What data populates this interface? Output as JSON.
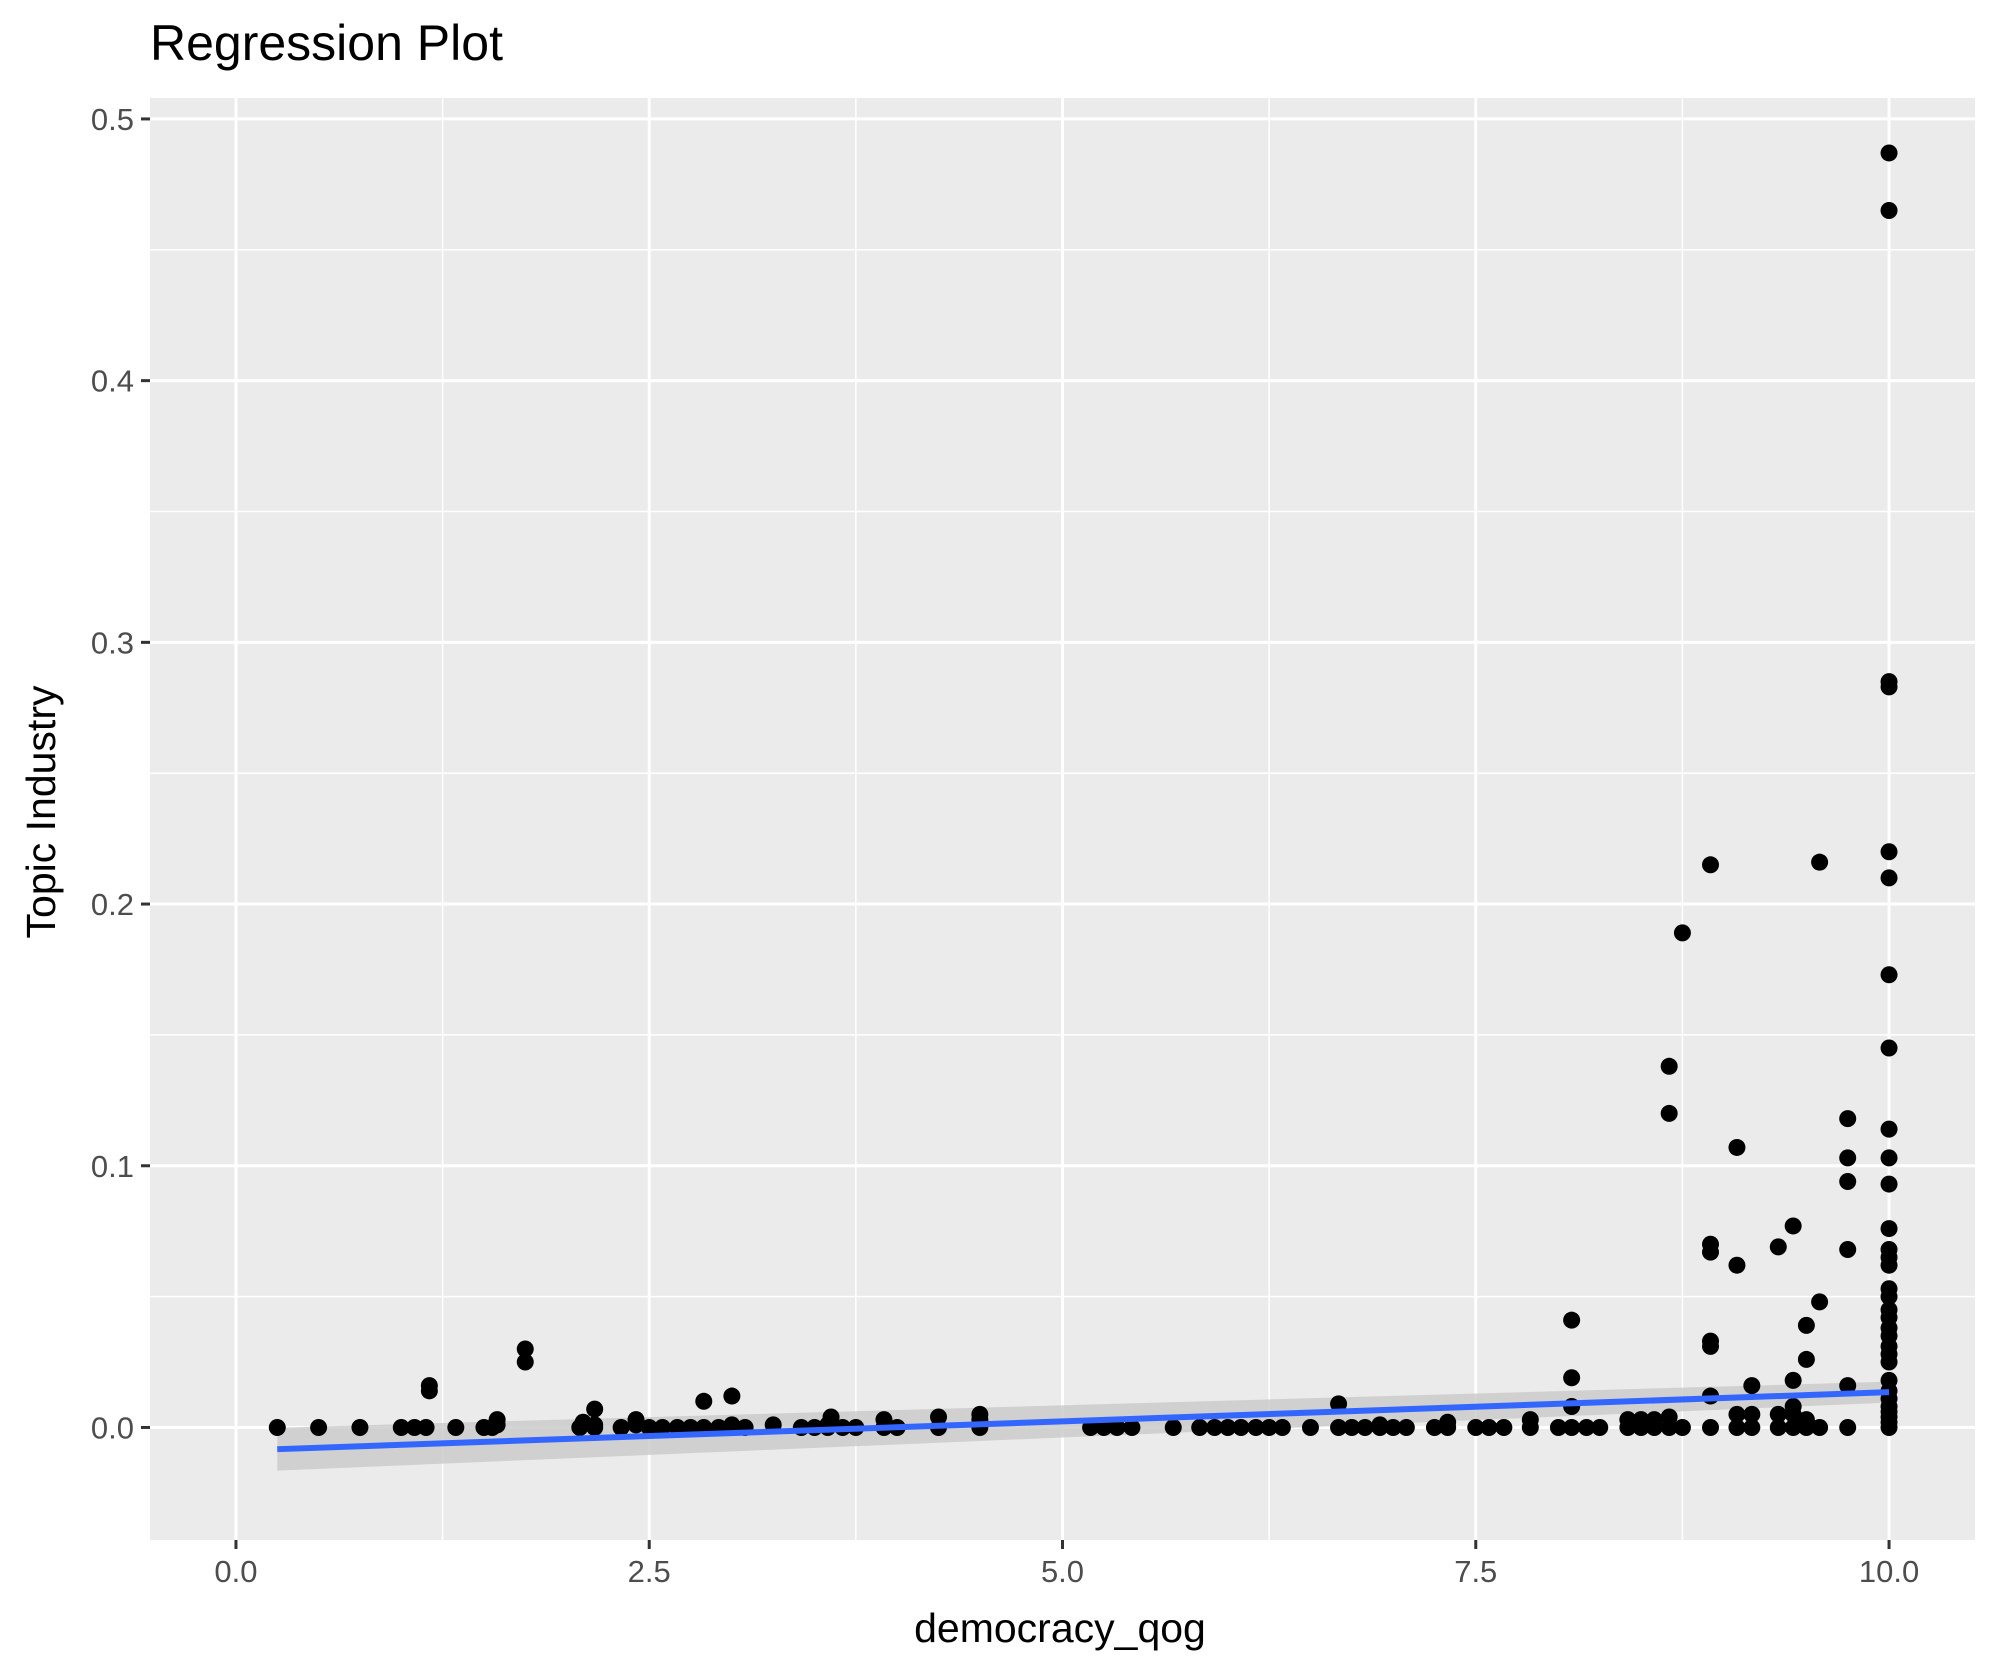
{
  "chart_data": {
    "type": "scatter",
    "title": "Regression Plot",
    "xlabel": "democracy_qog",
    "ylabel": "Topic Industry",
    "xlim": [
      -0.52,
      10.52
    ],
    "ylim": [
      -0.043,
      0.508
    ],
    "x_ticks": [
      {
        "value": 0.0,
        "label": "0.0"
      },
      {
        "value": 2.5,
        "label": "2.5"
      },
      {
        "value": 5.0,
        "label": "5.0"
      },
      {
        "value": 7.5,
        "label": "7.5"
      },
      {
        "value": 10.0,
        "label": "10.0"
      }
    ],
    "y_ticks": [
      {
        "value": 0.0,
        "label": "0.0"
      },
      {
        "value": 0.1,
        "label": "0.1"
      },
      {
        "value": 0.2,
        "label": "0.2"
      },
      {
        "value": 0.3,
        "label": "0.3"
      },
      {
        "value": 0.4,
        "label": "0.4"
      },
      {
        "value": 0.5,
        "label": "0.5"
      }
    ],
    "grid": true,
    "colors": {
      "panel": "#ebebeb",
      "grid": "#ffffff",
      "points": "#000000",
      "regression_line": "#3366ff",
      "confidence_band": "#c9c9c9"
    },
    "regression": {
      "x": [
        0.25,
        10.0
      ],
      "y": [
        -0.0083,
        0.0135
      ],
      "ci_lower": [
        -0.0165,
        0.0095
      ],
      "ci_upper": [
        -0.0001,
        0.0175
      ]
    },
    "points": [
      [
        0.25,
        0.0
      ],
      [
        0.5,
        0.0
      ],
      [
        0.75,
        0.0
      ],
      [
        1.0,
        0.0
      ],
      [
        1.08,
        0.0
      ],
      [
        1.15,
        0.0
      ],
      [
        1.17,
        0.014
      ],
      [
        1.17,
        0.016
      ],
      [
        1.33,
        0.0
      ],
      [
        1.5,
        0.0
      ],
      [
        1.55,
        0.0
      ],
      [
        1.58,
        0.001
      ],
      [
        1.58,
        0.003
      ],
      [
        1.75,
        0.025
      ],
      [
        1.75,
        0.03
      ],
      [
        2.08,
        0.0
      ],
      [
        2.1,
        0.002
      ],
      [
        2.17,
        0.0
      ],
      [
        2.17,
        0.001
      ],
      [
        2.17,
        0.007
      ],
      [
        2.33,
        0.0
      ],
      [
        2.42,
        0.001
      ],
      [
        2.42,
        0.003
      ],
      [
        2.5,
        0.0
      ],
      [
        2.58,
        0.0
      ],
      [
        2.67,
        0.0
      ],
      [
        2.75,
        0.0
      ],
      [
        2.83,
        0.0
      ],
      [
        2.83,
        0.01
      ],
      [
        2.92,
        0.0
      ],
      [
        3.0,
        0.001
      ],
      [
        3.0,
        0.012
      ],
      [
        3.08,
        0.0
      ],
      [
        3.25,
        0.001
      ],
      [
        3.42,
        0.0
      ],
      [
        3.5,
        0.0
      ],
      [
        3.58,
        0.0
      ],
      [
        3.58,
        0.001
      ],
      [
        3.6,
        0.004
      ],
      [
        3.67,
        0.0
      ],
      [
        3.75,
        0.0
      ],
      [
        3.92,
        0.0
      ],
      [
        3.92,
        0.003
      ],
      [
        4.0,
        0.0
      ],
      [
        4.25,
        0.0
      ],
      [
        4.25,
        0.004
      ],
      [
        4.5,
        0.0
      ],
      [
        4.5,
        0.003
      ],
      [
        4.5,
        0.005
      ],
      [
        5.17,
        0.0
      ],
      [
        5.25,
        0.0
      ],
      [
        5.33,
        0.0
      ],
      [
        5.42,
        0.0
      ],
      [
        5.67,
        0.0
      ],
      [
        5.83,
        0.0
      ],
      [
        5.92,
        0.0
      ],
      [
        6.0,
        0.0
      ],
      [
        6.08,
        0.0
      ],
      [
        6.17,
        0.0
      ],
      [
        6.25,
        0.0
      ],
      [
        6.33,
        0.0
      ],
      [
        6.5,
        0.0
      ],
      [
        6.67,
        0.0
      ],
      [
        6.67,
        0.009
      ],
      [
        6.75,
        0.0
      ],
      [
        6.83,
        0.0
      ],
      [
        6.92,
        0.0
      ],
      [
        6.92,
        0.001
      ],
      [
        7.0,
        0.0
      ],
      [
        7.08,
        0.0
      ],
      [
        7.25,
        0.0
      ],
      [
        7.33,
        0.0
      ],
      [
        7.33,
        0.002
      ],
      [
        7.5,
        0.0
      ],
      [
        7.58,
        0.0
      ],
      [
        7.67,
        0.0
      ],
      [
        7.83,
        0.0
      ],
      [
        7.83,
        0.003
      ],
      [
        8.0,
        0.0
      ],
      [
        8.08,
        0.0
      ],
      [
        8.08,
        0.008
      ],
      [
        8.08,
        0.019
      ],
      [
        8.08,
        0.041
      ],
      [
        8.17,
        0.0
      ],
      [
        8.25,
        0.0
      ],
      [
        8.42,
        0.0
      ],
      [
        8.42,
        0.003
      ],
      [
        8.5,
        0.0
      ],
      [
        8.5,
        0.003
      ],
      [
        8.58,
        0.0
      ],
      [
        8.58,
        0.003
      ],
      [
        8.67,
        0.0
      ],
      [
        8.67,
        0.004
      ],
      [
        8.67,
        0.12
      ],
      [
        8.67,
        0.138
      ],
      [
        8.75,
        0.0
      ],
      [
        8.75,
        0.189
      ],
      [
        8.92,
        0.0
      ],
      [
        8.92,
        0.012
      ],
      [
        8.92,
        0.031
      ],
      [
        8.92,
        0.033
      ],
      [
        8.92,
        0.067
      ],
      [
        8.92,
        0.07
      ],
      [
        8.92,
        0.215
      ],
      [
        9.08,
        0.0
      ],
      [
        9.08,
        0.005
      ],
      [
        9.08,
        0.062
      ],
      [
        9.08,
        0.107
      ],
      [
        9.17,
        0.0
      ],
      [
        9.17,
        0.005
      ],
      [
        9.17,
        0.016
      ],
      [
        9.33,
        0.0
      ],
      [
        9.33,
        0.005
      ],
      [
        9.33,
        0.069
      ],
      [
        9.42,
        0.0
      ],
      [
        9.42,
        0.005
      ],
      [
        9.42,
        0.008
      ],
      [
        9.42,
        0.018
      ],
      [
        9.42,
        0.077
      ],
      [
        9.5,
        0.0
      ],
      [
        9.5,
        0.003
      ],
      [
        9.5,
        0.026
      ],
      [
        9.5,
        0.039
      ],
      [
        9.58,
        0.0
      ],
      [
        9.58,
        0.048
      ],
      [
        9.58,
        0.216
      ],
      [
        9.75,
        0.0
      ],
      [
        9.75,
        0.016
      ],
      [
        9.75,
        0.068
      ],
      [
        9.75,
        0.094
      ],
      [
        9.75,
        0.103
      ],
      [
        9.75,
        0.118
      ],
      [
        10.0,
        0.0
      ],
      [
        10.0,
        0.002
      ],
      [
        10.0,
        0.004
      ],
      [
        10.0,
        0.006
      ],
      [
        10.0,
        0.008
      ],
      [
        10.0,
        0.011
      ],
      [
        10.0,
        0.014
      ],
      [
        10.0,
        0.018
      ],
      [
        10.0,
        0.025
      ],
      [
        10.0,
        0.028
      ],
      [
        10.0,
        0.031
      ],
      [
        10.0,
        0.035
      ],
      [
        10.0,
        0.038
      ],
      [
        10.0,
        0.042
      ],
      [
        10.0,
        0.045
      ],
      [
        10.0,
        0.05
      ],
      [
        10.0,
        0.053
      ],
      [
        10.0,
        0.062
      ],
      [
        10.0,
        0.065
      ],
      [
        10.0,
        0.068
      ],
      [
        10.0,
        0.076
      ],
      [
        10.0,
        0.093
      ],
      [
        10.0,
        0.103
      ],
      [
        10.0,
        0.114
      ],
      [
        10.0,
        0.145
      ],
      [
        10.0,
        0.173
      ],
      [
        10.0,
        0.21
      ],
      [
        10.0,
        0.22
      ],
      [
        10.0,
        0.283
      ],
      [
        10.0,
        0.285
      ],
      [
        10.0,
        0.465
      ],
      [
        10.0,
        0.487
      ]
    ]
  }
}
